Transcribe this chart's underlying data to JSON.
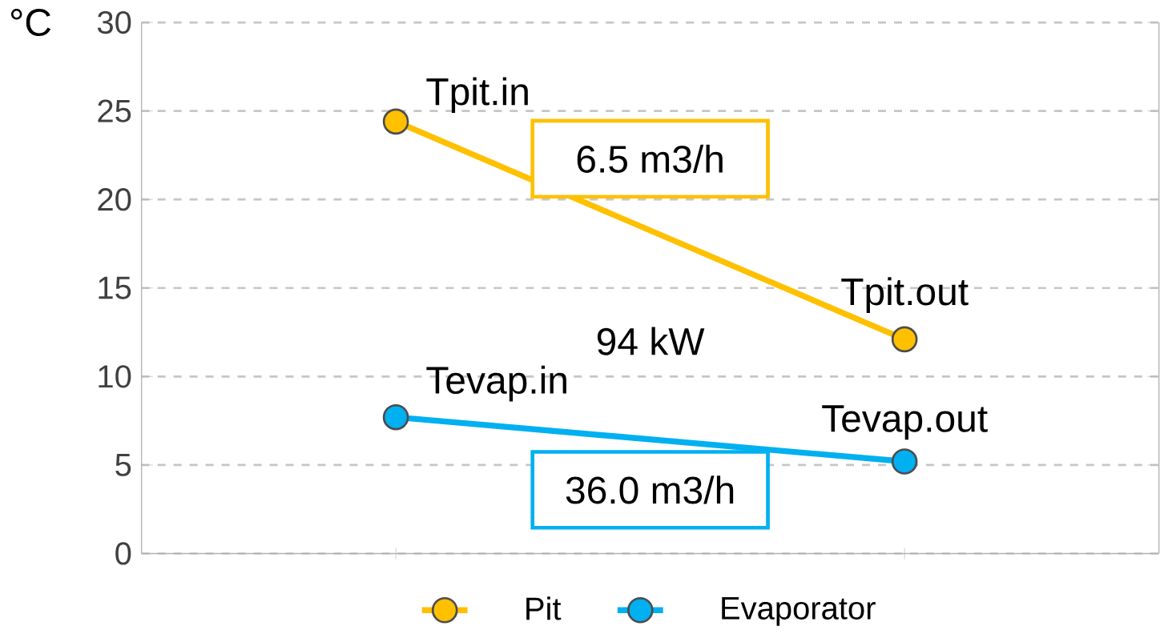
{
  "chart_data": {
    "type": "line",
    "ylabel": "°C",
    "categories": [
      null,
      null
    ],
    "series": [
      {
        "name": "Pit",
        "color": "#ffc000",
        "values": [
          24.4,
          12.1
        ]
      },
      {
        "name": "Evaporator",
        "color": "#00b0f0",
        "values": [
          7.7,
          5.2
        ]
      }
    ],
    "ylim": [
      0,
      30
    ],
    "yticks": [
      0,
      5,
      10,
      15,
      20,
      25,
      30
    ],
    "grid": "y",
    "legend": "bottom",
    "marker": "circle",
    "tick_labels": "y",
    "annotations": [
      "Tpit.in",
      "Tpit.out",
      "Tevap.in",
      "Tevap.out",
      "6.5 m3/h",
      "36.0 m3/h",
      "94 kW"
    ]
  }
}
